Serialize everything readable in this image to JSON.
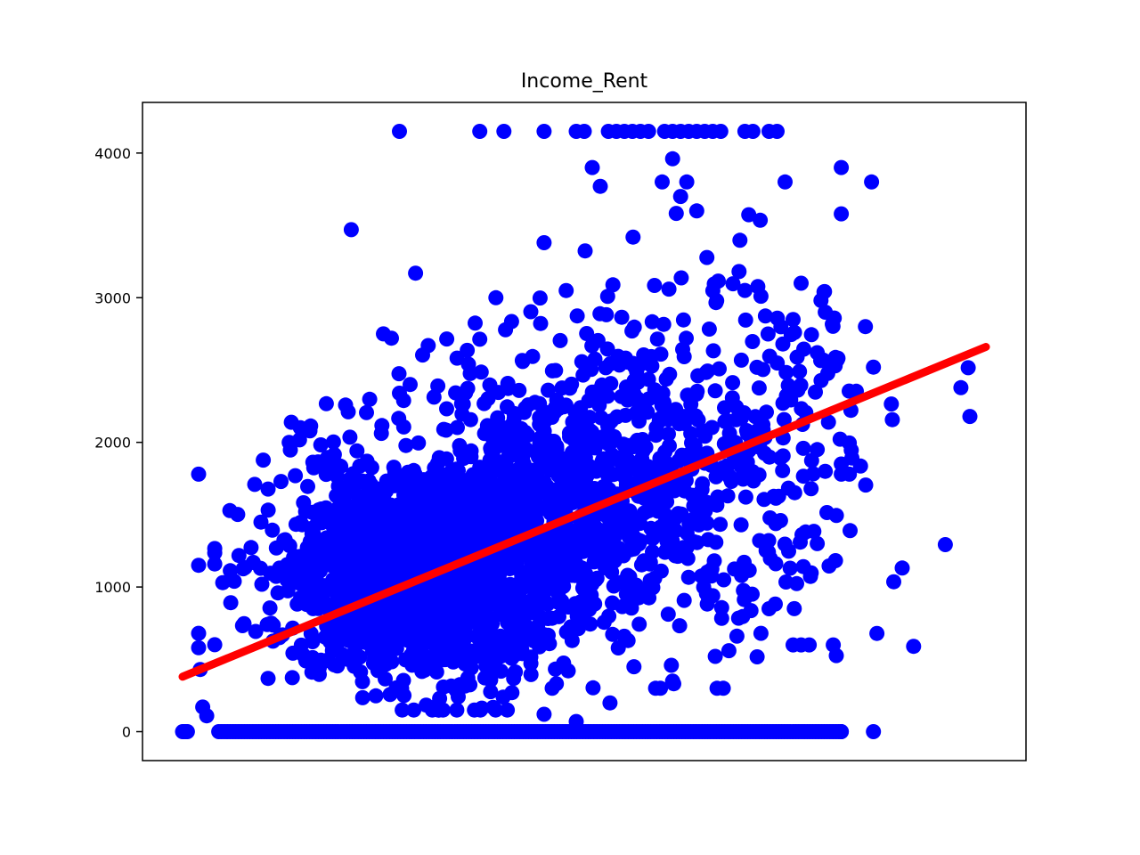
{
  "chart_data": {
    "type": "scatter",
    "title": "Income_Rent",
    "xlabel": "",
    "ylabel": "",
    "xlim": [
      0,
      1
    ],
    "ylim": [
      -200,
      4350
    ],
    "x_ticks_shown": false,
    "y_ticks": [
      0,
      1000,
      2000,
      3000,
      4000
    ],
    "grid": false,
    "legend": "none",
    "colors": {
      "points": "#0000ff",
      "fit_line": "#ff0000"
    },
    "series": [
      {
        "kind": "scatter",
        "clusters": [
          {
            "n": 1600,
            "x_mean": 0.3,
            "x_sd": 0.09,
            "y_mean": 1100,
            "y_sd": 380,
            "x_min": 0.04,
            "x_max": 0.98,
            "y_min": 150,
            "y_max": 2800
          },
          {
            "n": 700,
            "x_mean": 0.48,
            "x_sd": 0.12,
            "y_mean": 1700,
            "y_sd": 480,
            "x_min": 0.1,
            "x_max": 0.98,
            "y_min": 250,
            "y_max": 3100
          },
          {
            "n": 300,
            "x_mean": 0.65,
            "x_sd": 0.12,
            "y_mean": 2000,
            "y_sd": 700,
            "x_min": 0.3,
            "x_max": 0.98,
            "y_min": 300,
            "y_max": 3800
          }
        ],
        "zero_row": {
          "y": 0,
          "x_min": 0.045,
          "x_max": 0.82,
          "n": 220
        },
        "cap_row": {
          "y": 4150,
          "points_x": [
            0.27,
            0.37,
            0.4,
            0.45,
            0.49,
            0.5,
            0.53,
            0.54,
            0.55,
            0.56,
            0.57,
            0.58,
            0.6,
            0.61,
            0.62,
            0.63,
            0.64,
            0.65,
            0.66,
            0.67,
            0.7,
            0.71,
            0.73,
            0.74
          ]
        },
        "points": [
          [
            0.0,
            0
          ],
          [
            0.002,
            0
          ],
          [
            0.004,
            0
          ],
          [
            0.006,
            0
          ],
          [
            0.02,
            1780
          ],
          [
            0.02,
            1150
          ],
          [
            0.02,
            680
          ],
          [
            0.02,
            580
          ],
          [
            0.022,
            430
          ],
          [
            0.025,
            170
          ],
          [
            0.03,
            110
          ],
          [
            0.05,
            1030
          ],
          [
            0.21,
            3470
          ],
          [
            0.25,
            2750
          ],
          [
            0.26,
            2720
          ],
          [
            0.27,
            2340
          ],
          [
            0.29,
            3170
          ],
          [
            0.39,
            3000
          ],
          [
            0.45,
            3380
          ],
          [
            0.51,
            3900
          ],
          [
            0.52,
            3770
          ],
          [
            0.61,
            3960
          ],
          [
            0.62,
            3700
          ],
          [
            0.64,
            3600
          ],
          [
            0.7,
            3050
          ],
          [
            0.72,
            3010
          ],
          [
            0.75,
            3800
          ],
          [
            0.77,
            3100
          ],
          [
            0.79,
            2620
          ],
          [
            0.8,
            2900
          ],
          [
            0.82,
            3900
          ],
          [
            0.82,
            3580
          ],
          [
            0.85,
            2800
          ],
          [
            0.86,
            2520
          ],
          [
            0.79,
            1950
          ],
          [
            0.8,
            1800
          ],
          [
            0.79,
            1300
          ],
          [
            0.82,
            1780
          ],
          [
            0.82,
            1850
          ],
          [
            0.83,
            1780
          ],
          [
            0.76,
            600
          ],
          [
            0.77,
            600
          ],
          [
            0.78,
            600
          ],
          [
            0.68,
            560
          ],
          [
            0.73,
            850
          ],
          [
            0.72,
            680
          ],
          [
            0.69,
            660
          ],
          [
            0.61,
            350
          ],
          [
            0.32,
            230
          ],
          [
            0.41,
            270
          ],
          [
            0.45,
            120
          ],
          [
            0.49,
            70
          ],
          [
            0.81,
            600
          ],
          [
            0.91,
            590
          ],
          [
            0.82,
            0
          ],
          [
            0.86,
            0
          ]
        ]
      },
      {
        "kind": "line",
        "x": [
          0.0,
          1.0
        ],
        "y": [
          380,
          2660
        ]
      }
    ]
  }
}
